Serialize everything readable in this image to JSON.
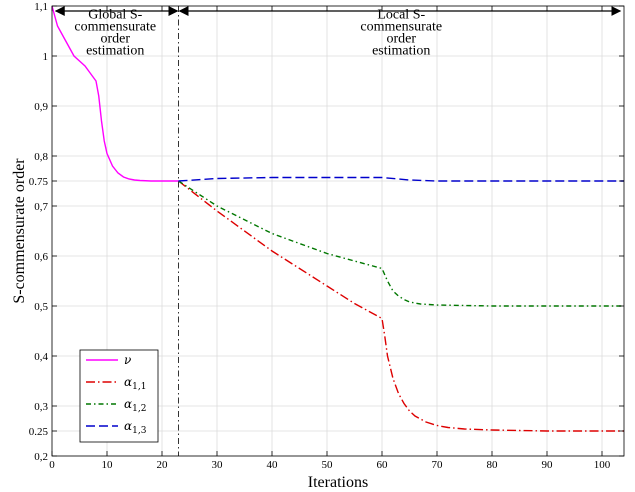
{
  "chart_data": {
    "type": "line",
    "xlabel": "Iterations",
    "ylabel": "S-commensurate order",
    "xlim": [
      0,
      104
    ],
    "ylim": [
      0.2,
      1.1
    ],
    "x_ticks": [
      0,
      10,
      20,
      30,
      40,
      50,
      60,
      70,
      80,
      90,
      100
    ],
    "x_tick_labels": [
      "0",
      "10",
      "20",
      "30",
      "40",
      "50",
      "60",
      "70",
      "80",
      "90",
      "100"
    ],
    "y_ticks": [
      0.2,
      0.25,
      0.3,
      0.4,
      0.5,
      0.6,
      0.7,
      0.75,
      0.8,
      0.9,
      1.0,
      1.1
    ],
    "y_tick_labels": [
      "0,2",
      "0.25",
      "0,3",
      "0,4",
      "0,5",
      "0,6",
      "0,7",
      "0.75",
      "0,8",
      "0,9",
      "1",
      "1,1"
    ],
    "grid": true,
    "legend_position": "bottom-left",
    "annotations": [
      {
        "lines": [
          "Global S-",
          "commensurate",
          "order",
          "estimation"
        ],
        "x": 11.5,
        "y": 1.075
      },
      {
        "lines": [
          "Local S-",
          "commensurate",
          "order",
          "estimation"
        ],
        "x": 63.5,
        "y": 1.075
      }
    ],
    "arrows": [
      {
        "x_from": 0.5,
        "x_to": 23,
        "y": 1.09
      },
      {
        "x_from": 23,
        "x_to": 103.5,
        "y": 1.09
      }
    ],
    "vline": {
      "x": 23,
      "color": "#333333",
      "dash": "dash-dot"
    },
    "series": [
      {
        "name": "ν",
        "legend_main": "ν",
        "legend_sub": "",
        "color": "#ff00ff",
        "dash": "solid",
        "x": [
          0,
          1,
          2,
          3,
          4,
          5,
          6,
          7,
          8,
          8.5,
          9,
          9.5,
          10,
          11,
          12,
          13,
          14,
          15,
          16,
          18,
          20,
          23
        ],
        "y": [
          1.1,
          1.06,
          1.04,
          1.02,
          1.0,
          0.99,
          0.98,
          0.965,
          0.95,
          0.92,
          0.87,
          0.83,
          0.805,
          0.78,
          0.766,
          0.758,
          0.754,
          0.752,
          0.751,
          0.75,
          0.75,
          0.75
        ]
      },
      {
        "name": "α1,1",
        "legend_main": "α",
        "legend_sub": "1,1",
        "color": "#dd0000",
        "dash": "long-dash-dot",
        "x": [
          23,
          30,
          40,
          50,
          55,
          60,
          60.5,
          61,
          62,
          63,
          64,
          65,
          66,
          68,
          70,
          72,
          75,
          80,
          85,
          90,
          95,
          100,
          104
        ],
        "y": [
          0.75,
          0.69,
          0.61,
          0.54,
          0.505,
          0.475,
          0.44,
          0.4,
          0.355,
          0.325,
          0.305,
          0.29,
          0.28,
          0.268,
          0.261,
          0.257,
          0.254,
          0.252,
          0.251,
          0.25,
          0.25,
          0.25,
          0.25
        ]
      },
      {
        "name": "α1,2",
        "legend_main": "α",
        "legend_sub": "1,2",
        "color": "#007700",
        "dash": "dash-dot",
        "x": [
          23,
          30,
          40,
          50,
          55,
          60,
          61,
          62,
          63,
          64,
          65,
          67,
          70,
          75,
          80,
          90,
          100,
          104
        ],
        "y": [
          0.75,
          0.7,
          0.645,
          0.605,
          0.59,
          0.575,
          0.55,
          0.53,
          0.52,
          0.513,
          0.508,
          0.504,
          0.502,
          0.501,
          0.5,
          0.5,
          0.5,
          0.5
        ]
      },
      {
        "name": "α1,3",
        "legend_main": "α",
        "legend_sub": "1,3",
        "color": "#0000cc",
        "dash": "long-dash",
        "x": [
          23,
          30,
          40,
          50,
          60,
          65,
          70,
          80,
          90,
          100,
          104
        ],
        "y": [
          0.75,
          0.755,
          0.757,
          0.757,
          0.757,
          0.752,
          0.75,
          0.75,
          0.75,
          0.75,
          0.75
        ]
      }
    ]
  }
}
